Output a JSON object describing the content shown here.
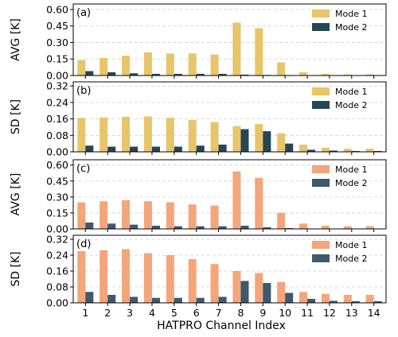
{
  "chart_data": {
    "type": "bar",
    "xlabel": "HATPRO Channel Index",
    "categories": [
      "1",
      "2",
      "3",
      "4",
      "5",
      "6",
      "7",
      "8",
      "9",
      "10",
      "11",
      "12",
      "13",
      "14"
    ],
    "panels": [
      {
        "tag": "(a)",
        "ylabel": "AVG [K]",
        "ylim": [
          0,
          0.65
        ],
        "yticks": [
          "0.00",
          "0.15",
          "0.30",
          "0.45",
          "0.60"
        ],
        "ytick_values": [
          0,
          0.15,
          0.3,
          0.45,
          0.6
        ],
        "grid": true,
        "legend_position": "top-right",
        "series": [
          {
            "name": "Mode 1",
            "color": "#e8c56a",
            "values": [
              0.14,
              0.16,
              0.18,
              0.21,
              0.2,
              0.2,
              0.19,
              0.48,
              0.43,
              0.12,
              0.03,
              0.015,
              0.01,
              0.01
            ]
          },
          {
            "name": "Mode 2",
            "color": "#264653",
            "values": [
              0.04,
              0.03,
              0.02,
              0.015,
              0.015,
              0.015,
              0.015,
              0.008,
              0.005,
              0.004,
              0.003,
              0.002,
              0.002,
              0.002
            ]
          }
        ]
      },
      {
        "tag": "(b)",
        "ylabel": "SD [K]",
        "ylim": [
          0,
          0.34
        ],
        "yticks": [
          "0.00",
          "0.08",
          "0.16",
          "0.24",
          "0.32"
        ],
        "ytick_values": [
          0,
          0.08,
          0.16,
          0.24,
          0.32
        ],
        "grid": true,
        "legend_position": "top-right",
        "series": [
          {
            "name": "Mode 1",
            "color": "#e8c56a",
            "values": [
              0.165,
              0.167,
              0.17,
              0.172,
              0.165,
              0.155,
              0.145,
              0.125,
              0.135,
              0.09,
              0.035,
              0.02,
              0.015,
              0.015
            ]
          },
          {
            "name": "Mode 2",
            "color": "#264653",
            "values": [
              0.03,
              0.025,
              0.025,
              0.025,
              0.025,
              0.03,
              0.035,
              0.11,
              0.1,
              0.04,
              0.01,
              0.006,
              0.004,
              0.004
            ]
          }
        ]
      },
      {
        "tag": "(c)",
        "ylabel": "AVG [K]",
        "ylim": [
          0,
          0.65
        ],
        "yticks": [
          "0.00",
          "0.15",
          "0.30",
          "0.45",
          "0.60"
        ],
        "ytick_values": [
          0,
          0.15,
          0.3,
          0.45,
          0.6
        ],
        "grid": true,
        "legend_position": "top-right",
        "series": [
          {
            "name": "Mode 1",
            "color": "#f4a67a",
            "values": [
              0.25,
              0.26,
              0.27,
              0.26,
              0.25,
              0.23,
              0.22,
              0.54,
              0.48,
              0.15,
              0.05,
              0.03,
              0.025,
              0.025
            ]
          },
          {
            "name": "Mode 2",
            "color": "#3d5a6e",
            "values": [
              0.06,
              0.05,
              0.04,
              0.03,
              0.025,
              0.025,
              0.025,
              0.03,
              0.015,
              0.008,
              0.004,
              0.003,
              0.002,
              0.002
            ]
          }
        ]
      },
      {
        "tag": "(d)",
        "ylabel": "SD [K]",
        "ylim": [
          0,
          0.34
        ],
        "yticks": [
          "0.00",
          "0.08",
          "0.16",
          "0.24",
          "0.32"
        ],
        "ytick_values": [
          0,
          0.08,
          0.16,
          0.24,
          0.32
        ],
        "grid": true,
        "legend_position": "top-right",
        "series": [
          {
            "name": "Mode 1",
            "color": "#f4a67a",
            "values": [
              0.26,
              0.265,
              0.27,
              0.25,
              0.24,
              0.22,
              0.195,
              0.16,
              0.15,
              0.105,
              0.055,
              0.045,
              0.04,
              0.04
            ]
          },
          {
            "name": "Mode 2",
            "color": "#3d5a6e",
            "values": [
              0.055,
              0.04,
              0.03,
              0.025,
              0.025,
              0.025,
              0.03,
              0.11,
              0.1,
              0.05,
              0.02,
              0.01,
              0.008,
              0.008
            ]
          }
        ]
      }
    ]
  }
}
